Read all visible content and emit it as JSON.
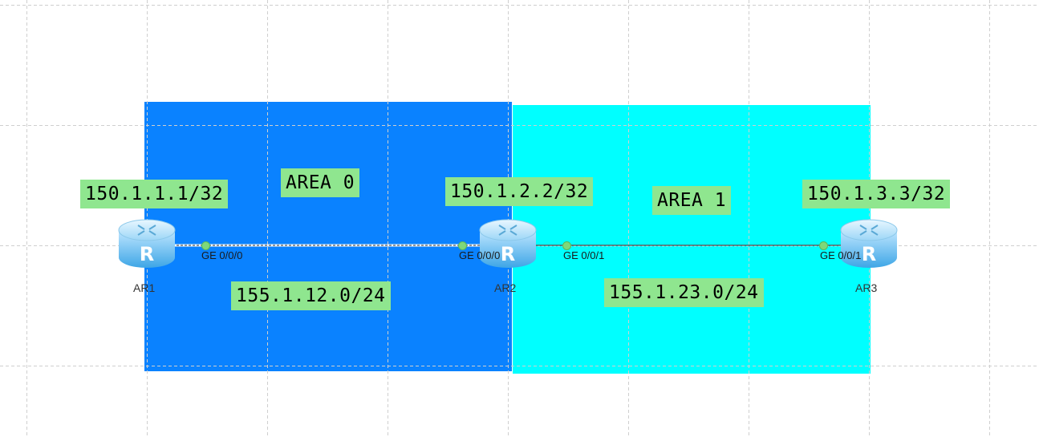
{
  "diagram": {
    "areas": [
      {
        "id": "area0",
        "label": "AREA 0",
        "color": "#0a82ff"
      },
      {
        "id": "area1",
        "label": "AREA 1",
        "color": "#00ffff"
      }
    ],
    "routers": [
      {
        "name": "AR1",
        "loopback": "150.1.1.1/32",
        "icon": "router-icon"
      },
      {
        "name": "AR2",
        "loopback": "150.1.2.2/32",
        "icon": "router-icon"
      },
      {
        "name": "AR3",
        "loopback": "150.1.3.3/32",
        "icon": "router-icon"
      }
    ],
    "links": [
      {
        "network": "155.1.12.0/24",
        "a_port": "GE 0/0/0",
        "b_port": "GE 0/0/0"
      },
      {
        "network": "155.1.23.0/24",
        "a_port": "GE 0/0/1",
        "b_port": "GE 0/0/1"
      }
    ],
    "colors": {
      "label_bg": "#8fe68f",
      "link_dot": "#7fd87a",
      "grid": "#cccccc"
    }
  }
}
